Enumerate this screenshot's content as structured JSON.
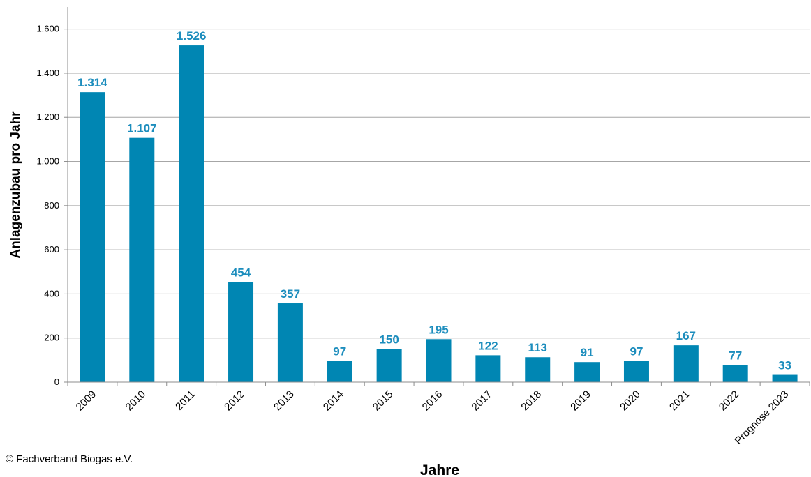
{
  "chart_data": {
    "type": "bar",
    "categories": [
      "2009",
      "2010",
      "2011",
      "2012",
      "2013",
      "2014",
      "2015",
      "2016",
      "2017",
      "2018",
      "2019",
      "2020",
      "2021",
      "2022",
      "Prognose 2023"
    ],
    "values": [
      1314,
      1107,
      1526,
      454,
      357,
      97,
      150,
      195,
      122,
      113,
      91,
      97,
      167,
      77,
      33
    ],
    "value_labels": [
      "1.314",
      "1.107",
      "1.526",
      "454",
      "357",
      "97",
      "150",
      "195",
      "122",
      "113",
      "91",
      "97",
      "167",
      "77",
      "33"
    ],
    "xlabel": "Jahre",
    "ylabel": "Anlagenzubau pro Jahr",
    "ylim": [
      0,
      1700
    ],
    "yticks": [
      0,
      200,
      400,
      600,
      800,
      1000,
      1200,
      1400,
      1600
    ],
    "ytick_labels": [
      "0",
      "200",
      "400",
      "600",
      "800",
      "1.000",
      "1.200",
      "1.400",
      "1.600"
    ],
    "grid": true,
    "legend": "none",
    "bar_color": "#0086b3",
    "label_color": "#1c8dbd"
  },
  "source": "© Fachverband Biogas e.V."
}
